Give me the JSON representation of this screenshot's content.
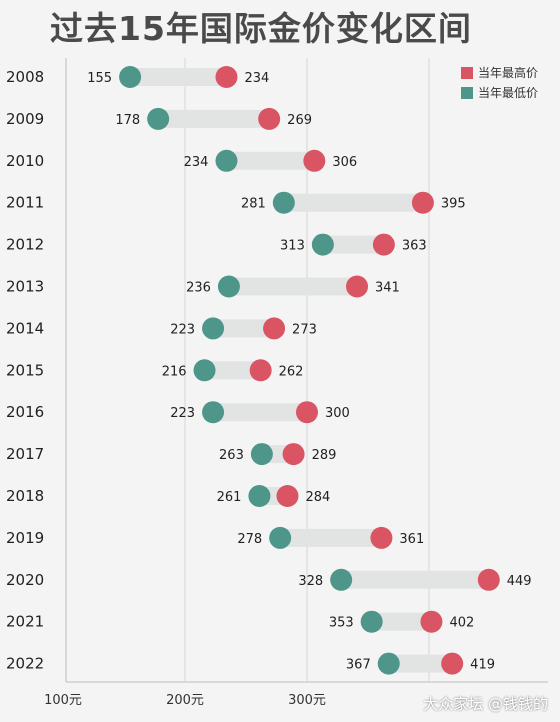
{
  "title": "过去15年国际金价变化区间",
  "watermark": "大众家坛 @钱钱的",
  "legend": {
    "high_label": "当年最高价",
    "low_label": "当年最低价"
  },
  "colors": {
    "high": "#d95564",
    "low": "#4d9689",
    "bar": "#e2e4e4",
    "grid": "#d6d6d6"
  },
  "chart_data": {
    "type": "dumbbell",
    "title": "过去15年国际金价变化区间",
    "x_ticks": [
      "100元",
      "200元",
      "300元"
    ],
    "x_tick_values": [
      100,
      200,
      300
    ],
    "x_range": [
      100,
      450
    ],
    "grid": true,
    "legend_position": "top-right",
    "categories": [
      "2008",
      "2009",
      "2010",
      "2011",
      "2012",
      "2013",
      "2014",
      "2015",
      "2016",
      "2017",
      "2018",
      "2019",
      "2020",
      "2021",
      "2022"
    ],
    "series": [
      {
        "name": "当年最低价",
        "values": [
          155,
          178,
          234,
          281,
          313,
          236,
          223,
          216,
          223,
          263,
          261,
          278,
          328,
          353,
          367
        ]
      },
      {
        "name": "当年最高价",
        "values": [
          234,
          269,
          306,
          395,
          363,
          341,
          273,
          262,
          300,
          289,
          284,
          361,
          449,
          402,
          419
        ]
      }
    ]
  }
}
